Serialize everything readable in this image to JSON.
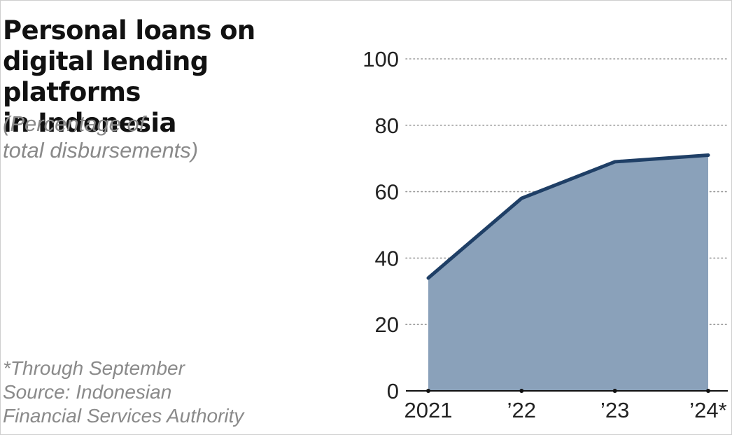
{
  "chart_data": {
    "type": "area",
    "title_lines": [
      "Personal loans on",
      "digital lending platforms",
      "in Indonesia"
    ],
    "subtitle_lines": [
      "(Percentage of",
      "total disbursements)"
    ],
    "notes": [
      "*Through September",
      "Source: Indonesian",
      "Financial Services Authority"
    ],
    "categories": [
      "2021",
      "’22",
      "’23",
      "’24*"
    ],
    "values": [
      34,
      58,
      69,
      71
    ],
    "yticks": [
      0,
      20,
      40,
      60,
      80,
      100
    ],
    "ylim": [
      0,
      100
    ],
    "grid": true,
    "colors": {
      "fill": "#8aa1ba",
      "line": "#1f3f66",
      "grid": "#9a9a9a",
      "axis": "#111111"
    }
  }
}
